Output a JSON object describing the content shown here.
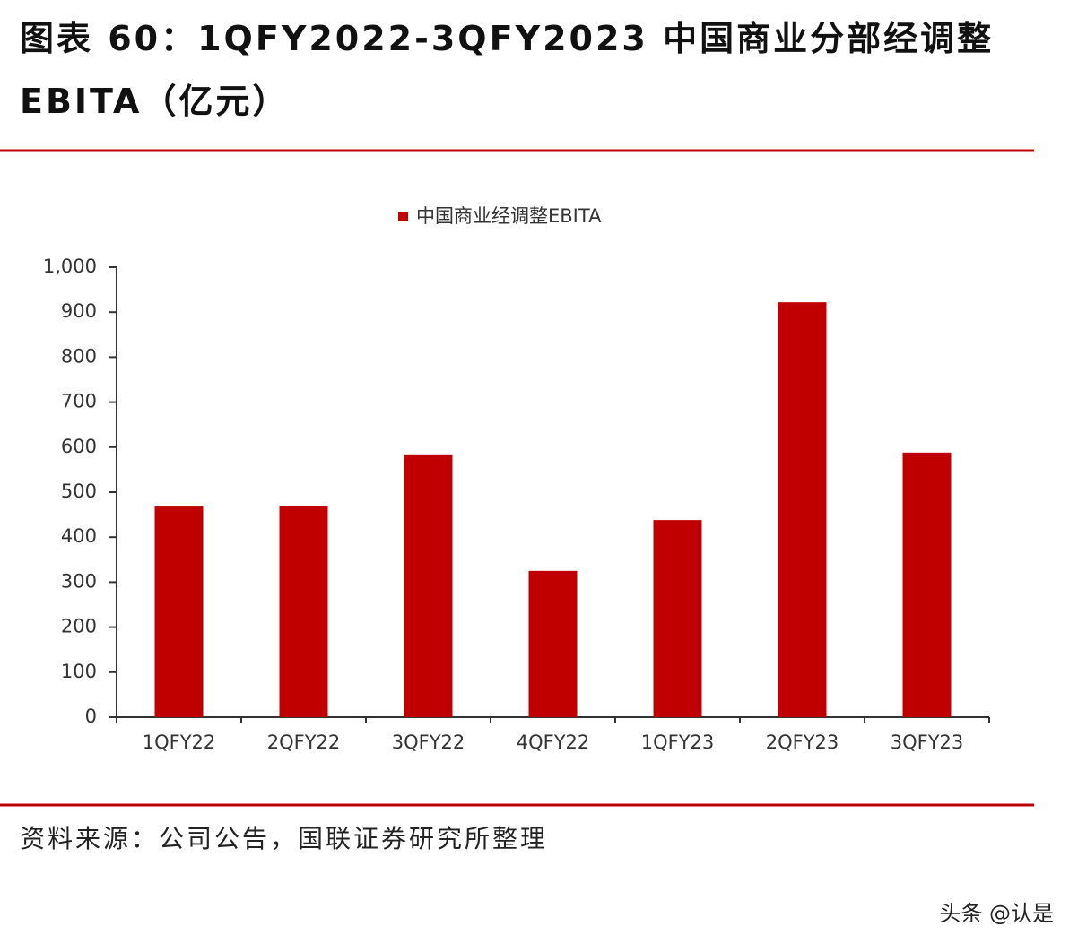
{
  "title": "图表 60：1QFY2022-3QFY2023 中国商业分部经调整EBITA（亿元）",
  "source": "资料来源：公司公告，国联证券研究所整理",
  "watermark": "头条 @认是",
  "chart_data": {
    "type": "bar",
    "categories": [
      "1QFY22",
      "2QFY22",
      "3QFY22",
      "4QFY22",
      "1QFY23",
      "2QFY23",
      "3QFY23"
    ],
    "series": [
      {
        "name": "中国商业经调整EBITA",
        "color": "#c00000",
        "values": [
          468,
          470,
          582,
          325,
          438,
          922,
          588
        ]
      }
    ],
    "ylim": [
      0,
      1000
    ],
    "yticks": [
      0,
      100,
      200,
      300,
      400,
      500,
      600,
      700,
      800,
      900,
      {
        "value": 1000,
        "label": "1,000"
      }
    ],
    "legend": "top"
  }
}
